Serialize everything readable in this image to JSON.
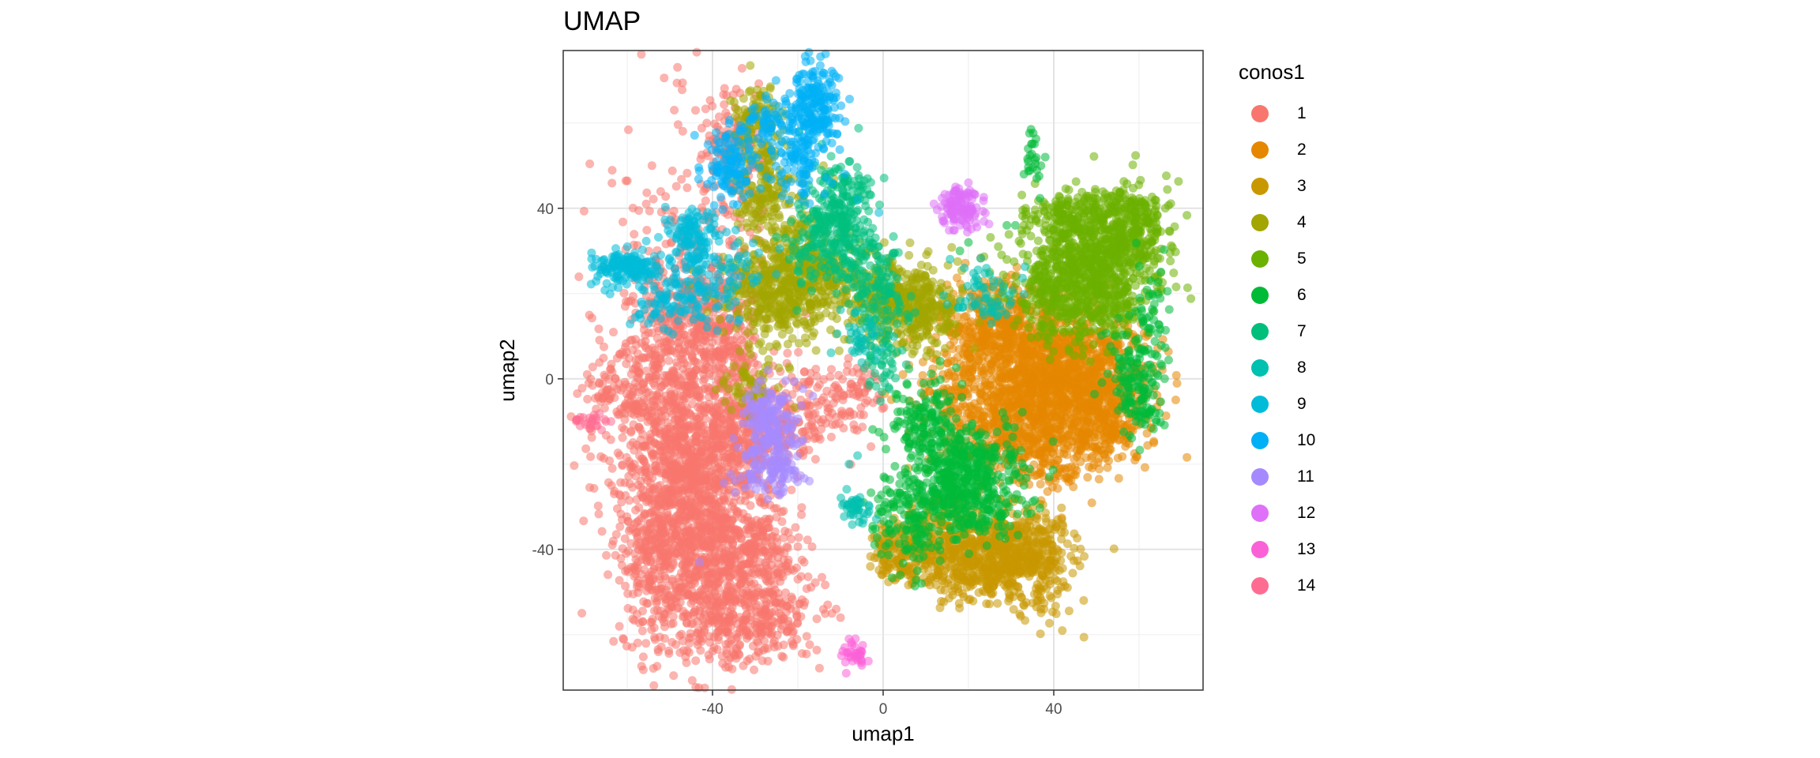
{
  "chart_data": {
    "type": "scatter",
    "title": "UMAP",
    "xlabel": "umap1",
    "ylabel": "umap2",
    "xlim": [
      -75,
      75
    ],
    "ylim": [
      -73,
      77
    ],
    "xticks": [
      -40,
      0,
      40
    ],
    "yticks": [
      -40,
      0,
      40
    ],
    "grid": true,
    "legend": {
      "title": "conos1",
      "position": "right",
      "entries": [
        "1",
        "2",
        "3",
        "4",
        "5",
        "6",
        "7",
        "8",
        "9",
        "10",
        "11",
        "12",
        "13",
        "14"
      ]
    },
    "colors": [
      "#F8766D",
      "#E58700",
      "#C99800",
      "#A3A500",
      "#6BB100",
      "#00BA38",
      "#00BF7D",
      "#00C0AF",
      "#00BCD8",
      "#00B0F6",
      "#A58AFF",
      "#DF70F8",
      "#FB61D7",
      "#FF6C91"
    ],
    "point_alpha": 0.55,
    "series": [
      {
        "name": "1",
        "clusters": [
          [
            -47,
            -8,
            9,
            30,
            900
          ],
          [
            -40,
            -30,
            8,
            14,
            500
          ],
          [
            -50,
            -20,
            7,
            12,
            350
          ],
          [
            -45,
            -45,
            8,
            10,
            350
          ],
          [
            -30,
            -50,
            7,
            8,
            220
          ],
          [
            -37,
            -58,
            5,
            4,
            90
          ],
          [
            -25,
            -56,
            4,
            5,
            80
          ],
          [
            -36,
            10,
            4,
            10,
            200
          ],
          [
            -42,
            16,
            3,
            6,
            60
          ],
          [
            -60,
            -2,
            5,
            4,
            100
          ],
          [
            -30,
            -12,
            6,
            6,
            150
          ],
          [
            -38,
            -16,
            6,
            6,
            120
          ],
          [
            -48,
            12,
            5,
            6,
            120
          ],
          [
            -20,
            -10,
            5,
            5,
            60
          ],
          [
            -12,
            -6,
            6,
            5,
            90
          ],
          [
            -4,
            -2,
            3,
            3,
            30
          ],
          [
            -34,
            52,
            4,
            8,
            110
          ],
          [
            -36,
            58,
            3,
            4,
            40
          ],
          [
            -28,
            -38,
            4,
            4,
            70
          ],
          [
            -55,
            -40,
            3,
            6,
            60
          ]
        ],
        "extra": [
          [
            -20,
            -47
          ],
          [
            -13,
            -53
          ],
          [
            -10,
            -56
          ],
          [
            -12,
            -55
          ],
          [
            -11,
            -54
          ]
        ]
      },
      {
        "name": "2",
        "clusters": [
          [
            38,
            -2,
            10,
            9,
            900
          ],
          [
            46,
            0,
            8,
            7,
            550
          ],
          [
            30,
            12,
            8,
            6,
            300
          ],
          [
            52,
            -10,
            5,
            5,
            160
          ],
          [
            32,
            -14,
            6,
            5,
            120
          ],
          [
            22,
            8,
            6,
            6,
            140
          ],
          [
            15,
            -5,
            5,
            5,
            80
          ],
          [
            24,
            -12,
            6,
            5,
            100
          ],
          [
            40,
            -18,
            5,
            4,
            80
          ]
        ],
        "extra": [
          [
            48,
            -16
          ],
          [
            40,
            -20
          ]
        ]
      },
      {
        "name": "3",
        "clusters": [
          [
            25,
            -40,
            8,
            5,
            500
          ],
          [
            36,
            -44,
            5,
            6,
            150
          ],
          [
            12,
            -36,
            5,
            5,
            140
          ],
          [
            5,
            -42,
            4,
            3,
            110
          ],
          [
            2,
            -38,
            2,
            3,
            40
          ],
          [
            33,
            -40,
            4,
            4,
            90
          ],
          [
            20,
            -46,
            5,
            3,
            100
          ]
        ],
        "extra": [
          [
            -2,
            -42
          ],
          [
            0,
            -45
          ],
          [
            -3,
            -44
          ]
        ]
      },
      {
        "name": "4",
        "clusters": [
          [
            -24,
            20,
            7,
            6,
            450
          ],
          [
            4,
            18,
            6,
            5,
            350
          ],
          [
            -30,
            60,
            3,
            5,
            110
          ],
          [
            -28,
            44,
            4,
            5,
            140
          ],
          [
            -20,
            32,
            4,
            5,
            100
          ],
          [
            -32,
            -2,
            3,
            3,
            50
          ],
          [
            -12,
            24,
            5,
            4,
            130
          ],
          [
            10,
            14,
            4,
            4,
            80
          ]
        ],
        "extra": [
          [
            -18,
            48
          ],
          [
            -14,
            50
          ]
        ]
      },
      {
        "name": "5",
        "clusters": [
          [
            48,
            28,
            8,
            8,
            700
          ],
          [
            58,
            36,
            4,
            5,
            220
          ],
          [
            40,
            18,
            5,
            5,
            150
          ],
          [
            52,
            18,
            5,
            5,
            140
          ],
          [
            44,
            38,
            5,
            3,
            120
          ]
        ],
        "extra": [
          [
            25,
            25
          ],
          [
            29,
            28
          ],
          [
            31,
            24
          ],
          [
            27,
            31
          ],
          [
            33,
            36
          ],
          [
            36,
            30
          ]
        ]
      },
      {
        "name": "6",
        "clusters": [
          [
            20,
            -22,
            7,
            6,
            420
          ],
          [
            10,
            -12,
            5,
            6,
            150
          ],
          [
            5,
            -36,
            4,
            4,
            80
          ],
          [
            35,
            52,
            1,
            3,
            20
          ],
          [
            58,
            0,
            3,
            6,
            110
          ],
          [
            63,
            10,
            2,
            8,
            60
          ],
          [
            62,
            -8,
            2,
            2,
            30
          ],
          [
            22,
            -32,
            5,
            3,
            80
          ],
          [
            4,
            -28,
            3,
            3,
            40
          ],
          [
            14,
            -28,
            4,
            3,
            60
          ]
        ],
        "extra": [
          [
            33,
            48
          ],
          [
            36,
            47
          ],
          [
            34,
            51
          ],
          [
            37,
            50
          ],
          [
            34,
            54
          ],
          [
            38,
            52
          ],
          [
            29,
            36
          ],
          [
            31,
            36
          ],
          [
            9,
            -48
          ],
          [
            4,
            -46
          ],
          [
            8,
            -45
          ],
          [
            18,
            30
          ],
          [
            20,
            32
          ]
        ]
      },
      {
        "name": "7",
        "clusters": [
          [
            -10,
            40,
            4,
            6,
            200
          ],
          [
            -16,
            32,
            3,
            5,
            90
          ],
          [
            -6,
            30,
            4,
            4,
            80
          ],
          [
            -2,
            20,
            4,
            4,
            80
          ],
          [
            0,
            6,
            3,
            6,
            60
          ]
        ],
        "extra": [
          [
            -16,
            50
          ],
          [
            -14,
            46
          ]
        ]
      },
      {
        "name": "8",
        "clusters": [
          [
            -6,
            -31,
            2,
            1.5,
            40
          ],
          [
            24,
            20,
            4,
            3,
            60
          ],
          [
            -5,
            10,
            3,
            3,
            40
          ]
        ],
        "extra": [
          [
            -8,
            -20
          ],
          [
            -6,
            -18
          ],
          [
            30,
            18
          ],
          [
            19,
            26
          ],
          [
            22,
            22
          ]
        ]
      },
      {
        "name": "9",
        "clusters": [
          [
            -60,
            26,
            4,
            2,
            150
          ],
          [
            -45,
            34,
            3,
            3,
            110
          ],
          [
            -40,
            24,
            5,
            5,
            100
          ],
          [
            -48,
            20,
            4,
            3,
            50
          ],
          [
            -54,
            16,
            3,
            3,
            30
          ]
        ],
        "extra": [
          [
            -1,
            39
          ],
          [
            -6,
            42
          ]
        ]
      },
      {
        "name": "10",
        "clusters": [
          [
            -16,
            64,
            3,
            5,
            200
          ],
          [
            -36,
            50,
            3,
            4,
            120
          ],
          [
            -20,
            52,
            3,
            5,
            100
          ],
          [
            -28,
            60,
            3,
            3,
            60
          ]
        ],
        "extra": [
          [
            -12,
            46
          ],
          [
            -9,
            48
          ]
        ]
      },
      {
        "name": "11",
        "clusters": [
          [
            -26,
            -14,
            3,
            6,
            200
          ],
          [
            -26,
            -22,
            4,
            2,
            60
          ],
          [
            -30,
            -6,
            2,
            2,
            30
          ]
        ],
        "extra": [
          [
            -32,
            -18
          ],
          [
            -43,
            -43
          ]
        ]
      },
      {
        "name": "12",
        "clusters": [
          [
            18,
            39,
            3,
            2,
            90
          ],
          [
            19,
            43,
            2,
            1,
            25
          ]
        ],
        "extra": [
          [
            20,
            46
          ],
          [
            15,
            40
          ],
          [
            14,
            37
          ]
        ]
      },
      {
        "name": "13",
        "clusters": [
          [
            -7,
            -65,
            1.5,
            2,
            30
          ]
        ],
        "extra": [
          [
            -9,
            -63
          ],
          [
            -8,
            -61
          ],
          [
            -6,
            -66
          ],
          [
            -5,
            -64
          ]
        ]
      },
      {
        "name": "14",
        "clusters": [
          [
            -69,
            -10,
            2,
            1,
            22
          ]
        ],
        "extra": [
          [
            -71,
            -9
          ],
          [
            -67,
            -11
          ],
          [
            -66,
            -12
          ],
          [
            -65,
            -10
          ]
        ]
      }
    ]
  }
}
